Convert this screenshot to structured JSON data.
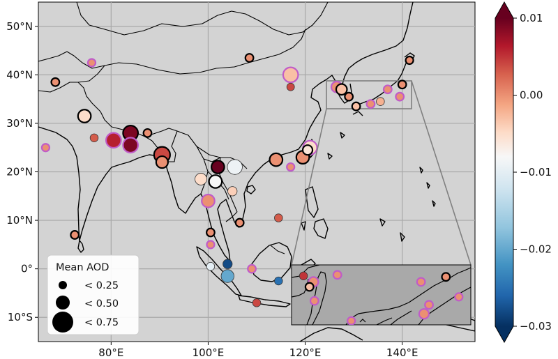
{
  "map": {
    "lon_labels": [
      "80°E",
      "100°E",
      "120°E",
      "140°E"
    ],
    "lat_labels": [
      "50°N",
      "40°N",
      "30°N",
      "20°N",
      "10°N",
      "0°",
      "10°S"
    ],
    "lon_values": [
      80,
      100,
      120,
      140
    ],
    "lat_values": [
      50,
      40,
      30,
      20,
      10,
      0,
      -10
    ],
    "extent": {
      "lon": [
        65,
        155
      ],
      "lat": [
        -15,
        55
      ]
    },
    "inset_region": {
      "lon": [
        124,
        142
      ],
      "lat": [
        33,
        39
      ]
    },
    "ocean_color": "#d3d3d3",
    "inset_color": "#a9a9a9",
    "ring_colors": {
      "black": "#000000",
      "magenta": "#c05cc8"
    }
  },
  "legend": {
    "title": "Mean AOD",
    "items": [
      {
        "label": "< 0.25",
        "aod": 0.25
      },
      {
        "label": "< 0.50",
        "aod": 0.5
      },
      {
        "label": "< 0.75",
        "aod": 0.75
      }
    ]
  },
  "colorbar": {
    "tick_labels": [
      "0.01",
      "0.00",
      "−0.01",
      "−0.02",
      "−0.03"
    ],
    "tick_values": [
      0.01,
      0.0,
      -0.01,
      -0.02,
      -0.03
    ],
    "range": [
      -0.03,
      0.01
    ],
    "colors": [
      "#053061",
      "#2166ac",
      "#4393c3",
      "#92c5de",
      "#d1e5f0",
      "#f7f7f7",
      "#fddbc7",
      "#f4a582",
      "#d6604d",
      "#b2182b",
      "#67001f"
    ]
  },
  "stations": [
    {
      "lon": 66.5,
      "lat": 25,
      "v": 0.0,
      "aod": 0.1,
      "ring": "magenta"
    },
    {
      "lon": 68.5,
      "lat": 38.5,
      "v": 0.0,
      "aod": 0.12,
      "ring": "black"
    },
    {
      "lon": 76,
      "lat": 42.5,
      "v": 0.0,
      "aod": 0.1,
      "ring": "magenta"
    },
    {
      "lon": 74.5,
      "lat": 31.5,
      "v": -0.005,
      "aod": 0.35,
      "ring": "black"
    },
    {
      "lon": 76.5,
      "lat": 27,
      "v": 0.003,
      "aod": 0.12,
      "ring": "none"
    },
    {
      "lon": 80.5,
      "lat": 26.5,
      "v": 0.006,
      "aod": 0.45,
      "ring": "magenta"
    },
    {
      "lon": 84,
      "lat": 28,
      "v": 0.009,
      "aod": 0.45,
      "ring": "black"
    },
    {
      "lon": 84,
      "lat": 25.5,
      "v": 0.009,
      "aod": 0.45,
      "ring": "magenta"
    },
    {
      "lon": 87.5,
      "lat": 28,
      "v": 0.0,
      "aod": 0.12,
      "ring": "black"
    },
    {
      "lon": 90.5,
      "lat": 23.5,
      "v": 0.004,
      "aod": 0.5,
      "ring": "black"
    },
    {
      "lon": 90.5,
      "lat": 22,
      "v": 0.0,
      "aod": 0.3,
      "ring": "black"
    },
    {
      "lon": 72.5,
      "lat": 7,
      "v": 0.0,
      "aod": 0.12,
      "ring": "black"
    },
    {
      "lon": 98.5,
      "lat": 18.5,
      "v": -0.005,
      "aod": 0.3,
      "ring": "none"
    },
    {
      "lon": 100,
      "lat": 14,
      "v": 0.0,
      "aod": 0.35,
      "ring": "magenta"
    },
    {
      "lon": 100.5,
      "lat": 7.5,
      "v": 0.0,
      "aod": 0.12,
      "ring": "black"
    },
    {
      "lon": 100.5,
      "lat": 5,
      "v": 0.0,
      "aod": 0.1,
      "ring": "magenta"
    },
    {
      "lon": 101.5,
      "lat": 18,
      "v": -0.008,
      "aod": 0.35,
      "ring": "black"
    },
    {
      "lon": 102,
      "lat": 21,
      "v": 0.012,
      "aod": 0.35,
      "ring": "black"
    },
    {
      "lon": 105.5,
      "lat": 21,
      "v": -0.009,
      "aod": 0.45,
      "ring": "none"
    },
    {
      "lon": 105,
      "lat": 16,
      "v": -0.004,
      "aod": 0.18,
      "ring": "none"
    },
    {
      "lon": 106.5,
      "lat": 9.5,
      "v": 0.0,
      "aod": 0.12,
      "ring": "black"
    },
    {
      "lon": 100.5,
      "lat": 0.5,
      "v": -0.01,
      "aod": 0.12,
      "ring": "none"
    },
    {
      "lon": 104,
      "lat": 1,
      "v": -0.028,
      "aod": 0.18,
      "ring": "none"
    },
    {
      "lon": 104,
      "lat": -1.5,
      "v": -0.02,
      "aod": 0.35,
      "ring": "none"
    },
    {
      "lon": 109,
      "lat": 0,
      "v": 0.0,
      "aod": 0.12,
      "ring": "magenta"
    },
    {
      "lon": 110,
      "lat": -7,
      "v": 0.004,
      "aod": 0.12,
      "ring": "none"
    },
    {
      "lon": 114.5,
      "lat": -2.5,
      "v": -0.025,
      "aod": 0.12,
      "ring": "none"
    },
    {
      "lon": 114.5,
      "lat": 10.5,
      "v": 0.003,
      "aod": 0.12,
      "ring": "none"
    },
    {
      "lon": 114,
      "lat": 22.5,
      "v": 0.0,
      "aod": 0.35,
      "ring": "black"
    },
    {
      "lon": 117,
      "lat": 21,
      "v": 0.0,
      "aod": 0.1,
      "ring": "magenta"
    },
    {
      "lon": 119.5,
      "lat": 23,
      "v": 0.0,
      "aod": 0.35,
      "ring": "black"
    },
    {
      "lon": 121,
      "lat": 25,
      "v": -0.005,
      "aod": 0.4,
      "ring": "magenta"
    },
    {
      "lon": 120.5,
      "lat": 24.5,
      "v": -0.006,
      "aod": 0.2,
      "ring": "black"
    },
    {
      "lon": 117,
      "lat": 40,
      "v": -0.003,
      "aod": 0.45,
      "ring": "magenta"
    },
    {
      "lon": 108.5,
      "lat": 43.5,
      "v": 0.0,
      "aod": 0.12,
      "ring": "black"
    },
    {
      "lon": 118,
      "lat": -3,
      "v": 0.004,
      "aod": 0.12,
      "ring": "none"
    },
    {
      "lon": 117,
      "lat": 37.5,
      "v": 0.004,
      "aod": 0.1,
      "ring": "none"
    },
    {
      "lon": 126.5,
      "lat": 37.5,
      "v": 0.0,
      "aod": 0.25,
      "ring": "magenta"
    },
    {
      "lon": 127.5,
      "lat": 37,
      "v": -0.003,
      "aod": 0.25,
      "ring": "black"
    },
    {
      "lon": 129,
      "lat": 35.5,
      "v": 0.0,
      "aod": 0.12,
      "ring": "black"
    },
    {
      "lon": 130.5,
      "lat": 33.5,
      "v": -0.003,
      "aod": 0.12,
      "ring": "black"
    },
    {
      "lon": 133.5,
      "lat": 34,
      "v": 0.0,
      "aod": 0.12,
      "ring": "magenta"
    },
    {
      "lon": 135.5,
      "lat": 34.5,
      "v": -0.002,
      "aod": 0.12,
      "ring": "none"
    },
    {
      "lon": 137,
      "lat": 37,
      "v": 0.0,
      "aod": 0.12,
      "ring": "magenta"
    },
    {
      "lon": 139.5,
      "lat": 35.5,
      "v": 0.0,
      "aod": 0.12,
      "ring": "magenta"
    },
    {
      "lon": 140,
      "lat": 38,
      "v": 0.0,
      "aod": 0.12,
      "ring": "black"
    },
    {
      "lon": 141.5,
      "lat": 43,
      "v": 0.0,
      "aod": 0.1,
      "ring": "black"
    }
  ],
  "inset_stations": [
    {
      "lon": 125.2,
      "lat": 37.9,
      "v": 0.005,
      "aod": 0.12,
      "ring": "none"
    },
    {
      "lon": 126.2,
      "lat": 37.3,
      "v": 0.0,
      "aod": 0.2,
      "ring": "magenta"
    },
    {
      "lon": 125.8,
      "lat": 36.8,
      "v": -0.003,
      "aod": 0.12,
      "ring": "black"
    },
    {
      "lon": 126.3,
      "lat": 35.4,
      "v": 0.0,
      "aod": 0.12,
      "ring": "magenta"
    },
    {
      "lon": 128.6,
      "lat": 38.0,
      "v": 0.0,
      "aod": 0.12,
      "ring": "magenta"
    },
    {
      "lon": 130.0,
      "lat": 33.4,
      "v": 0.0,
      "aod": 0.1,
      "ring": "magenta"
    },
    {
      "lon": 137.0,
      "lat": 37.3,
      "v": 0.0,
      "aod": 0.12,
      "ring": "magenta"
    },
    {
      "lon": 137.8,
      "lat": 35.0,
      "v": 0.0,
      "aod": 0.12,
      "ring": "magenta"
    },
    {
      "lon": 137.3,
      "lat": 34.1,
      "v": 0.0,
      "aod": 0.2,
      "ring": "magenta"
    },
    {
      "lon": 139.5,
      "lat": 37.8,
      "v": 0.0,
      "aod": 0.12,
      "ring": "black"
    },
    {
      "lon": 140.8,
      "lat": 35.8,
      "v": 0.0,
      "aod": 0.1,
      "ring": "magenta"
    }
  ]
}
